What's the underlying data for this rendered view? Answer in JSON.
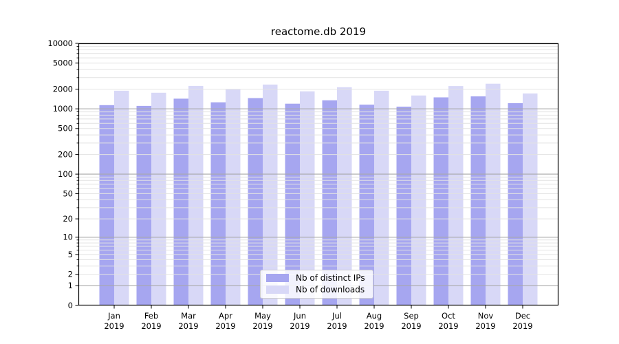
{
  "chart_data": {
    "type": "bar",
    "title": "reactome.db 2019",
    "categories": [
      "Jan",
      "Feb",
      "Mar",
      "Apr",
      "May",
      "Jun",
      "Jul",
      "Aug",
      "Sep",
      "Oct",
      "Nov",
      "Dec"
    ],
    "x_year_label": "2019",
    "series": [
      {
        "name": "Nb of distinct IPs",
        "color": "#a6a6f0",
        "values": [
          1140,
          1110,
          1430,
          1260,
          1460,
          1200,
          1350,
          1160,
          1080,
          1500,
          1550,
          1220
        ]
      },
      {
        "name": "Nb of downloads",
        "color": "#d8d8f7",
        "values": [
          1890,
          1760,
          2240,
          1980,
          2350,
          1850,
          2140,
          1890,
          1600,
          2230,
          2420,
          1720
        ]
      }
    ],
    "scale": "log1p",
    "ylim": [
      0,
      10000
    ],
    "y_ticks": [
      0,
      1,
      2,
      5,
      10,
      20,
      50,
      100,
      200,
      500,
      1000,
      2000,
      5000,
      10000
    ],
    "grid": true,
    "grid_minor_color": "#e2e2e2",
    "grid_major_color": "#a8a8a8",
    "legend_position": "lower center"
  }
}
